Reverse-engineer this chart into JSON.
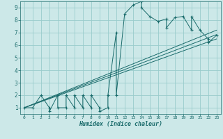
{
  "title": "",
  "xlabel": "Humidex (Indice chaleur)",
  "bg_color": "#cce8e8",
  "grid_color": "#99cccc",
  "line_color": "#1a6b6b",
  "xlim": [
    -0.5,
    23.5
  ],
  "ylim": [
    0.5,
    9.5
  ],
  "xticks": [
    0,
    1,
    2,
    3,
    4,
    5,
    6,
    7,
    8,
    9,
    10,
    11,
    12,
    13,
    14,
    15,
    16,
    17,
    18,
    19,
    20,
    21,
    22,
    23
  ],
  "yticks": [
    1,
    2,
    3,
    4,
    5,
    6,
    7,
    8,
    9
  ],
  "line_data": [
    [
      0,
      1
    ],
    [
      1,
      1
    ],
    [
      2,
      2
    ],
    [
      3,
      1
    ],
    [
      3,
      0.7
    ],
    [
      4,
      2
    ],
    [
      4,
      1
    ],
    [
      5,
      1
    ],
    [
      5,
      2
    ],
    [
      6,
      1
    ],
    [
      6,
      2
    ],
    [
      7,
      1
    ],
    [
      7,
      2
    ],
    [
      8,
      1
    ],
    [
      8,
      2
    ],
    [
      9,
      1
    ],
    [
      9,
      0.7
    ],
    [
      10,
      1
    ],
    [
      10,
      2
    ],
    [
      11,
      7
    ],
    [
      11,
      2
    ],
    [
      12,
      8.5
    ],
    [
      13,
      9.2
    ],
    [
      14,
      9.5
    ],
    [
      14,
      9.0
    ],
    [
      15,
      8.3
    ],
    [
      16,
      7.9
    ],
    [
      17,
      8.1
    ],
    [
      17,
      7.4
    ],
    [
      18,
      8.2
    ],
    [
      19,
      8.3
    ],
    [
      20,
      7.2
    ],
    [
      20,
      8.3
    ],
    [
      21,
      7.2
    ],
    [
      22,
      6.5
    ],
    [
      22,
      6.2
    ],
    [
      23,
      6.8
    ]
  ],
  "envelope_lines": [
    [
      [
        0,
        1
      ],
      [
        23,
        7.2
      ]
    ],
    [
      [
        0,
        1
      ],
      [
        23,
        6.5
      ]
    ],
    [
      [
        0,
        1
      ],
      [
        23,
        6.85
      ]
    ]
  ]
}
